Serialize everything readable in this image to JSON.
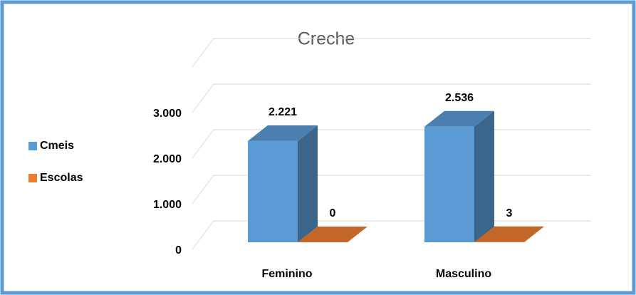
{
  "chart_data": {
    "type": "bar3d",
    "title": "Creche",
    "categories": [
      "Feminino",
      "Masculino"
    ],
    "series": [
      {
        "name": "Cmeis",
        "color": "#5b9bd5",
        "values": [
          2221,
          2536
        ],
        "value_labels": [
          "2.221",
          "2.536"
        ]
      },
      {
        "name": "Escolas",
        "color": "#ed7d31",
        "values": [
          0,
          3
        ]
      }
    ],
    "ylim": [
      0,
      4000
    ],
    "yticks": [
      0,
      {
        "value": 1000,
        "label": "1.000"
      },
      {
        "value": 2000,
        "label": "2.000"
      },
      {
        "value": 3000,
        "label": "3.000"
      }
    ],
    "grid": true,
    "legend": "left"
  }
}
